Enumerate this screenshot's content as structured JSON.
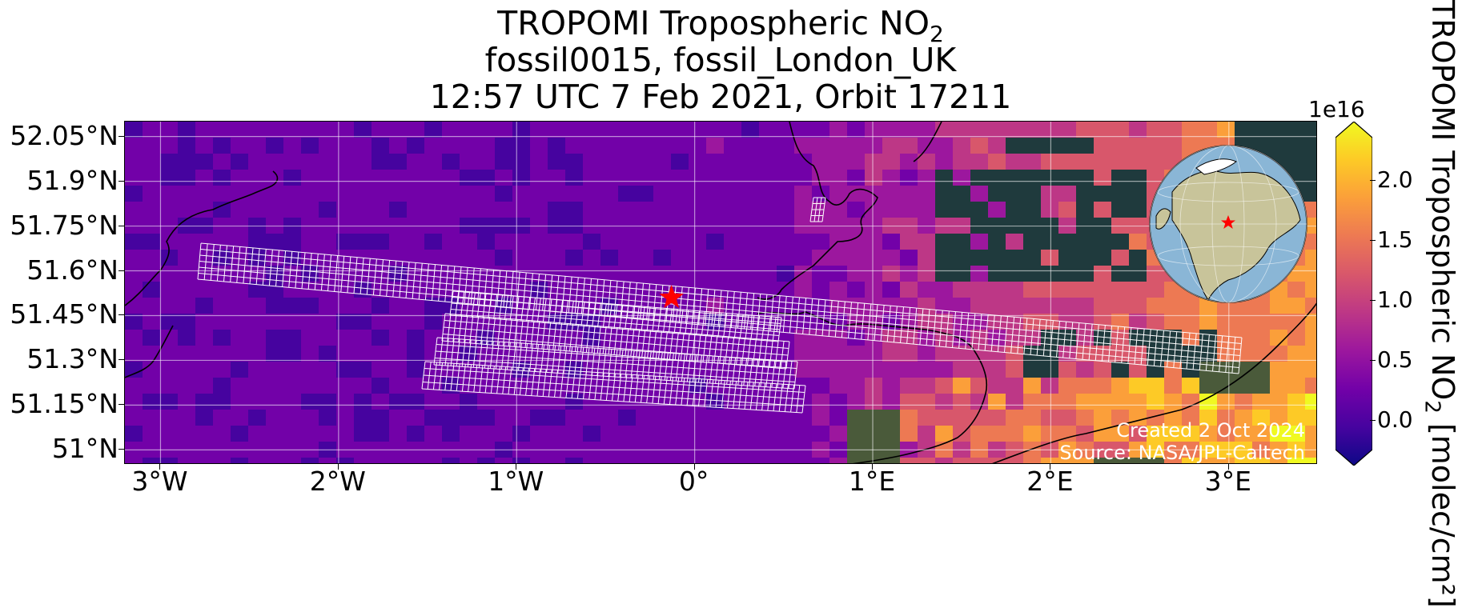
{
  "title": {
    "line1_prefix": "TROPOMI Tropospheric NO",
    "line1_sub": "2",
    "line2": "fossil0015, fossil_London_UK",
    "line3": "12:57 UTC 7 Feb 2021, Orbit 17211"
  },
  "map": {
    "lon_range": [
      -3.2,
      3.5
    ],
    "lat_range": [
      50.95,
      52.1
    ],
    "x_ticks": [
      "3°W",
      "2°W",
      "1°W",
      "0°",
      "1°E",
      "2°E",
      "3°E"
    ],
    "x_tick_values": [
      -3,
      -2,
      -1,
      0,
      1,
      2,
      3
    ],
    "y_ticks": [
      "52.05°N",
      "51.9°N",
      "51.75°N",
      "51.6°N",
      "51.45°N",
      "51.3°N",
      "51.15°N",
      "51°N"
    ],
    "y_tick_values": [
      52.05,
      51.9,
      51.75,
      51.6,
      51.45,
      51.3,
      51.15,
      51.0
    ],
    "target_marker": {
      "lon": -0.13,
      "lat": 51.51,
      "color": "#ff0000",
      "shape": "star"
    },
    "grid": true,
    "footprint_color": "#ffffff",
    "inset": "globe-inset"
  },
  "credits": {
    "created": "Created 2 Oct 2024",
    "source": "Source: NASA/JPL-Caltech"
  },
  "colorbar": {
    "colormap": "plasma",
    "multiplier": "1e16",
    "ticks": [
      "0.0",
      "0.5",
      "1.0",
      "1.5",
      "2.0"
    ],
    "tick_values": [
      0.0,
      0.5,
      1.0,
      1.5,
      2.0
    ],
    "range": [
      -0.25,
      2.35
    ],
    "label_prefix": "TROPOMI Tropospheric NO",
    "label_sub": "2",
    "label_suffix": " [molec/cm²]"
  },
  "colors": {
    "plasma": [
      "#0d0887",
      "#46039f",
      "#7201a8",
      "#9c179e",
      "#bd3786",
      "#d8576b",
      "#ed7953",
      "#fb9f3a",
      "#fdca26",
      "#f0f921"
    ],
    "land_dark": "#1f3a3d",
    "ocean_globe": "#8ab6d6",
    "land_globe": "#c8c49a"
  }
}
